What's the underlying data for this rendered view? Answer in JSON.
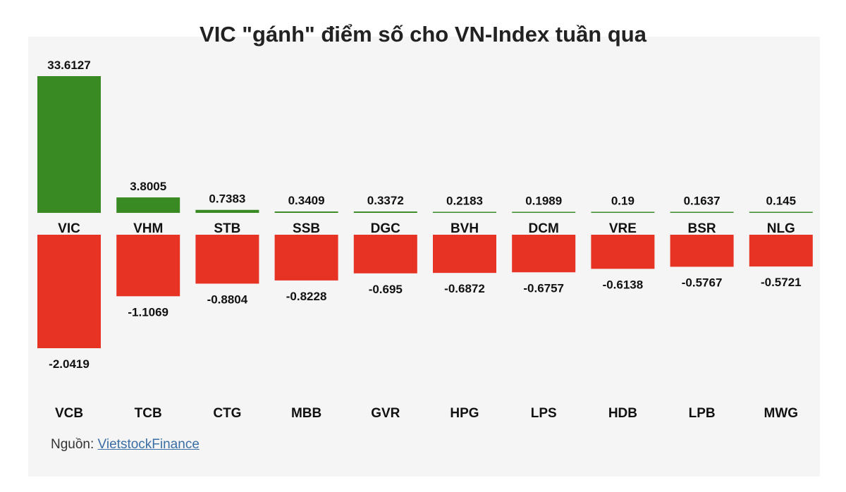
{
  "chart_data": {
    "type": "bar",
    "title": "VIC \"gánh\" điểm số cho VN-Index tuần qua",
    "positive_series": {
      "color": "#3a8a23",
      "categories": [
        "VIC",
        "VHM",
        "STB",
        "SSB",
        "DGC",
        "BVH",
        "DCM",
        "VRE",
        "BSR",
        "NLG"
      ],
      "values": [
        33.6127,
        3.8005,
        0.7383,
        0.3409,
        0.3372,
        0.2183,
        0.1989,
        0.19,
        0.1637,
        0.145
      ],
      "value_labels": [
        "33.6127",
        "3.8005",
        "0.7383",
        "0.3409",
        "0.3372",
        "0.2183",
        "0.1989",
        "0.19",
        "0.1637",
        "0.145"
      ]
    },
    "negative_series": {
      "color": "#e63324",
      "categories": [
        "VCB",
        "TCB",
        "CTG",
        "MBB",
        "GVR",
        "HPG",
        "LPS",
        "HDB",
        "LPB",
        "MWG"
      ],
      "values": [
        -2.0419,
        -1.1069,
        -0.8804,
        -0.8228,
        -0.695,
        -0.6872,
        -0.6757,
        -0.6138,
        -0.5767,
        -0.5721
      ],
      "value_labels": [
        "-2.0419",
        "-1.1069",
        "-0.8804",
        "-0.8228",
        "-0.695",
        "-0.6872",
        "-0.6757",
        "-0.6138",
        "-0.5767",
        "-0.5721"
      ]
    },
    "grid": false,
    "legend": "none"
  },
  "source": {
    "label": "Nguồn: ",
    "link_text": "VietstockFinance"
  }
}
